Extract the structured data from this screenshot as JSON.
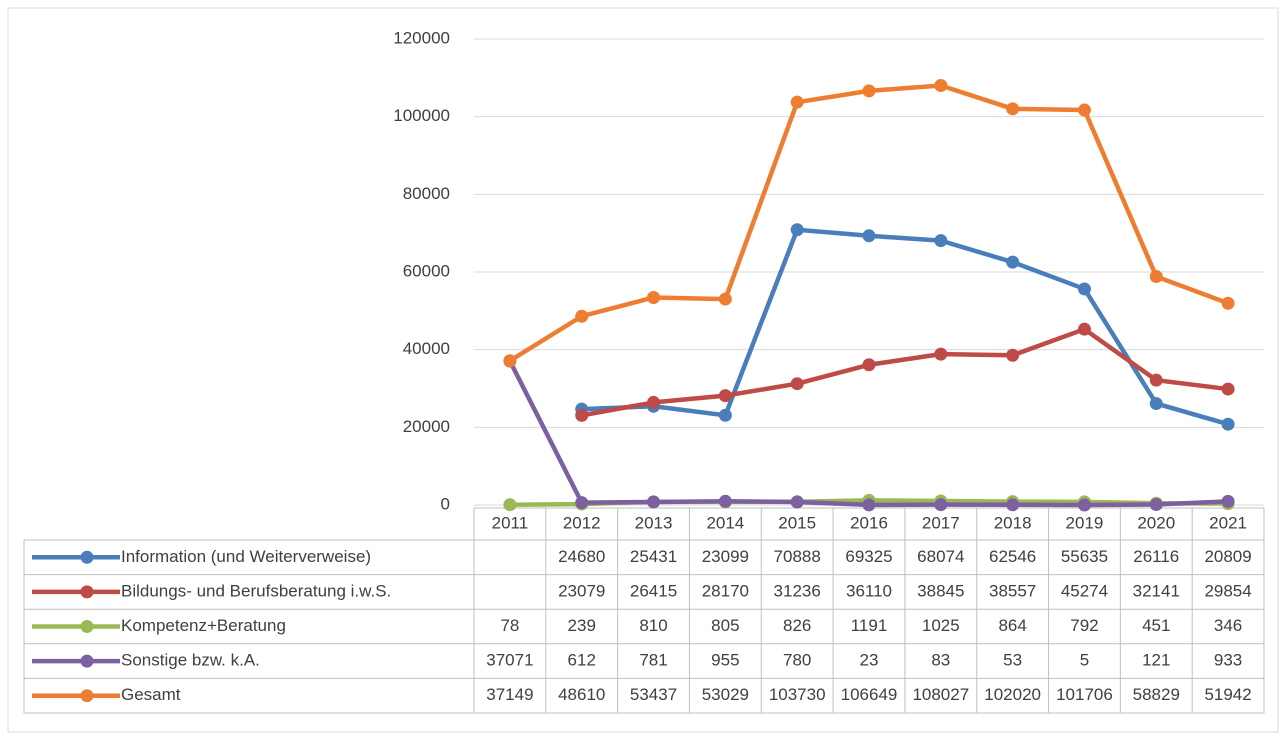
{
  "chart_data": {
    "type": "line",
    "categories": [
      "2011",
      "2012",
      "2013",
      "2014",
      "2015",
      "2016",
      "2017",
      "2018",
      "2019",
      "2020",
      "2021"
    ],
    "series": [
      {
        "name": "Information (und Weiterverweise)",
        "color": "#4A7EBB",
        "values": [
          null,
          24680,
          25431,
          23099,
          70888,
          69325,
          68074,
          62546,
          55635,
          26116,
          20809
        ]
      },
      {
        "name": "Bildungs- und Berufsberatung i.w.S.",
        "color": "#BE4B48",
        "values": [
          null,
          23079,
          26415,
          28170,
          31236,
          36110,
          38845,
          38557,
          45274,
          32141,
          29854
        ]
      },
      {
        "name": "Kompetenz+Beratung",
        "color": "#98B954",
        "values": [
          78,
          239,
          810,
          805,
          826,
          1191,
          1025,
          864,
          792,
          451,
          346
        ]
      },
      {
        "name": "Sonstige bzw. k.A.",
        "color": "#7D60A0",
        "values": [
          37071,
          612,
          781,
          955,
          780,
          23,
          83,
          53,
          5,
          121,
          933
        ]
      },
      {
        "name": "Gesamt",
        "color": "#ED7D31",
        "values": [
          37149,
          48610,
          53437,
          53029,
          103730,
          106649,
          108027,
          102020,
          101706,
          58829,
          51942
        ]
      }
    ],
    "ylim": [
      0,
      120000
    ],
    "yticks": [
      0,
      20000,
      40000,
      60000,
      80000,
      100000,
      120000
    ],
    "grid": true,
    "data_table": true
  }
}
